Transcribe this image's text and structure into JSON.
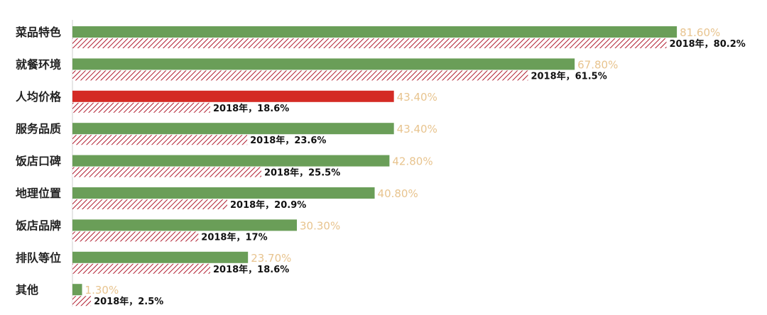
{
  "chart_data": {
    "type": "bar",
    "orientation": "horizontal",
    "categories": [
      "菜品特色",
      "就餐环境",
      "人均价格",
      "服务品质",
      "饭店口碑",
      "地理位置",
      "饭店品牌",
      "排队等位",
      "其他"
    ],
    "series": [
      {
        "values": [
          81.6,
          67.8,
          43.4,
          43.4,
          42.8,
          40.8,
          30.3,
          23.7,
          1.3
        ],
        "labels": [
          "81.60%",
          "67.80%",
          "43.40%",
          "43.40%",
          "42.80%",
          "40.80%",
          "30.30%",
          "23.70%",
          "1.30%"
        ],
        "color": "#6a9e58",
        "highlight_color": "#d42a24",
        "highlight_index": 2
      },
      {
        "values": [
          80.2,
          61.5,
          18.6,
          23.6,
          25.5,
          20.9,
          17,
          18.6,
          2.5
        ],
        "labels": [
          "2018年，80.2%",
          "2018年，61.5%",
          "2018年，18.6%",
          "2018年，23.6%",
          "2018年，25.5%",
          "2018年，20.9%",
          "2018年，17%",
          "2018年，18.6%",
          "2018年，2.5%"
        ],
        "color": "#b01c2e",
        "pattern": "diagonal-hatch"
      }
    ],
    "value_label_color": "#e8c48f",
    "xlim": [
      0,
      100
    ],
    "grid": false,
    "legend": "none"
  }
}
